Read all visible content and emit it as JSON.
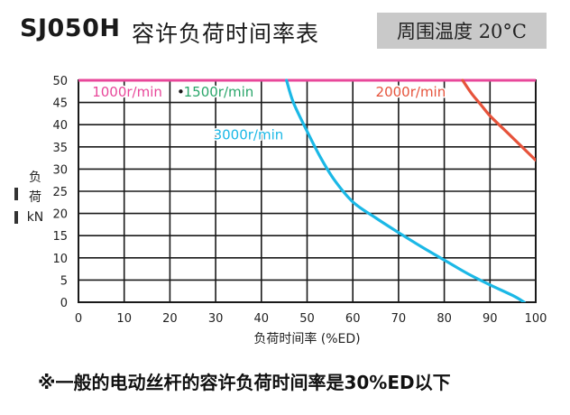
{
  "header": {
    "model": "SJ050H",
    "title": "容许负荷时间率表",
    "temperature": "周围温度 20°C"
  },
  "footnote": "※一般的电动丝杆的容许负荷时间率是30%ED以下",
  "chart_data": {
    "type": "line",
    "xlabel": "负荷时间率 (%ED)",
    "ylabel_lines": [
      "负",
      "荷",
      "kN"
    ],
    "xlim": [
      0,
      100
    ],
    "ylim": [
      0,
      50
    ],
    "xticks": [
      0,
      10,
      20,
      30,
      40,
      50,
      60,
      70,
      80,
      90,
      100
    ],
    "yticks": [
      0,
      5,
      10,
      15,
      20,
      25,
      30,
      35,
      40,
      45,
      50
    ],
    "grid": true,
    "series": [
      {
        "name": "1000r/min",
        "color": "#e8479a",
        "label_color": "#e8479a",
        "x": [
          0,
          100
        ],
        "y": [
          50,
          50
        ]
      },
      {
        "name": "1500r/min",
        "color": "#e8479a",
        "label_color": "#2aa66a",
        "x": [
          0,
          100
        ],
        "y": [
          50,
          50
        ]
      },
      {
        "name": "3000r/min",
        "color": "#1bb8e6",
        "label_color": "#1bb8e6",
        "x": [
          45.5,
          47,
          50,
          53,
          56,
          60,
          65,
          70,
          75,
          80,
          85,
          90,
          95,
          97.5
        ],
        "y": [
          50,
          45,
          38.5,
          32.5,
          27.5,
          22.6,
          19,
          15.7,
          12.5,
          9.5,
          6.5,
          3.9,
          1.5,
          0
        ]
      },
      {
        "name": "2000r/min",
        "color": "#e6533b",
        "label_color": "#e6533b",
        "x": [
          84,
          86,
          88,
          90,
          93,
          96,
          100
        ],
        "y": [
          50,
          47,
          44.5,
          42,
          39,
          36,
          32
        ]
      }
    ],
    "series_labels": [
      {
        "text": "1000r/min",
        "color": "#e8479a",
        "x": 3,
        "y": 46.3
      },
      {
        "text": "•",
        "color": "#1a1a1a",
        "x": 21.5,
        "y": 46.3
      },
      {
        "text": "1500r/min",
        "color": "#2aa66a",
        "x": 23,
        "y": 46.3
      },
      {
        "text": "2000r/min",
        "color": "#e6533b",
        "x": 65,
        "y": 46.3
      },
      {
        "text": "3000r/min",
        "color": "#1bb8e6",
        "x": 29.5,
        "y": 36.7
      }
    ]
  }
}
